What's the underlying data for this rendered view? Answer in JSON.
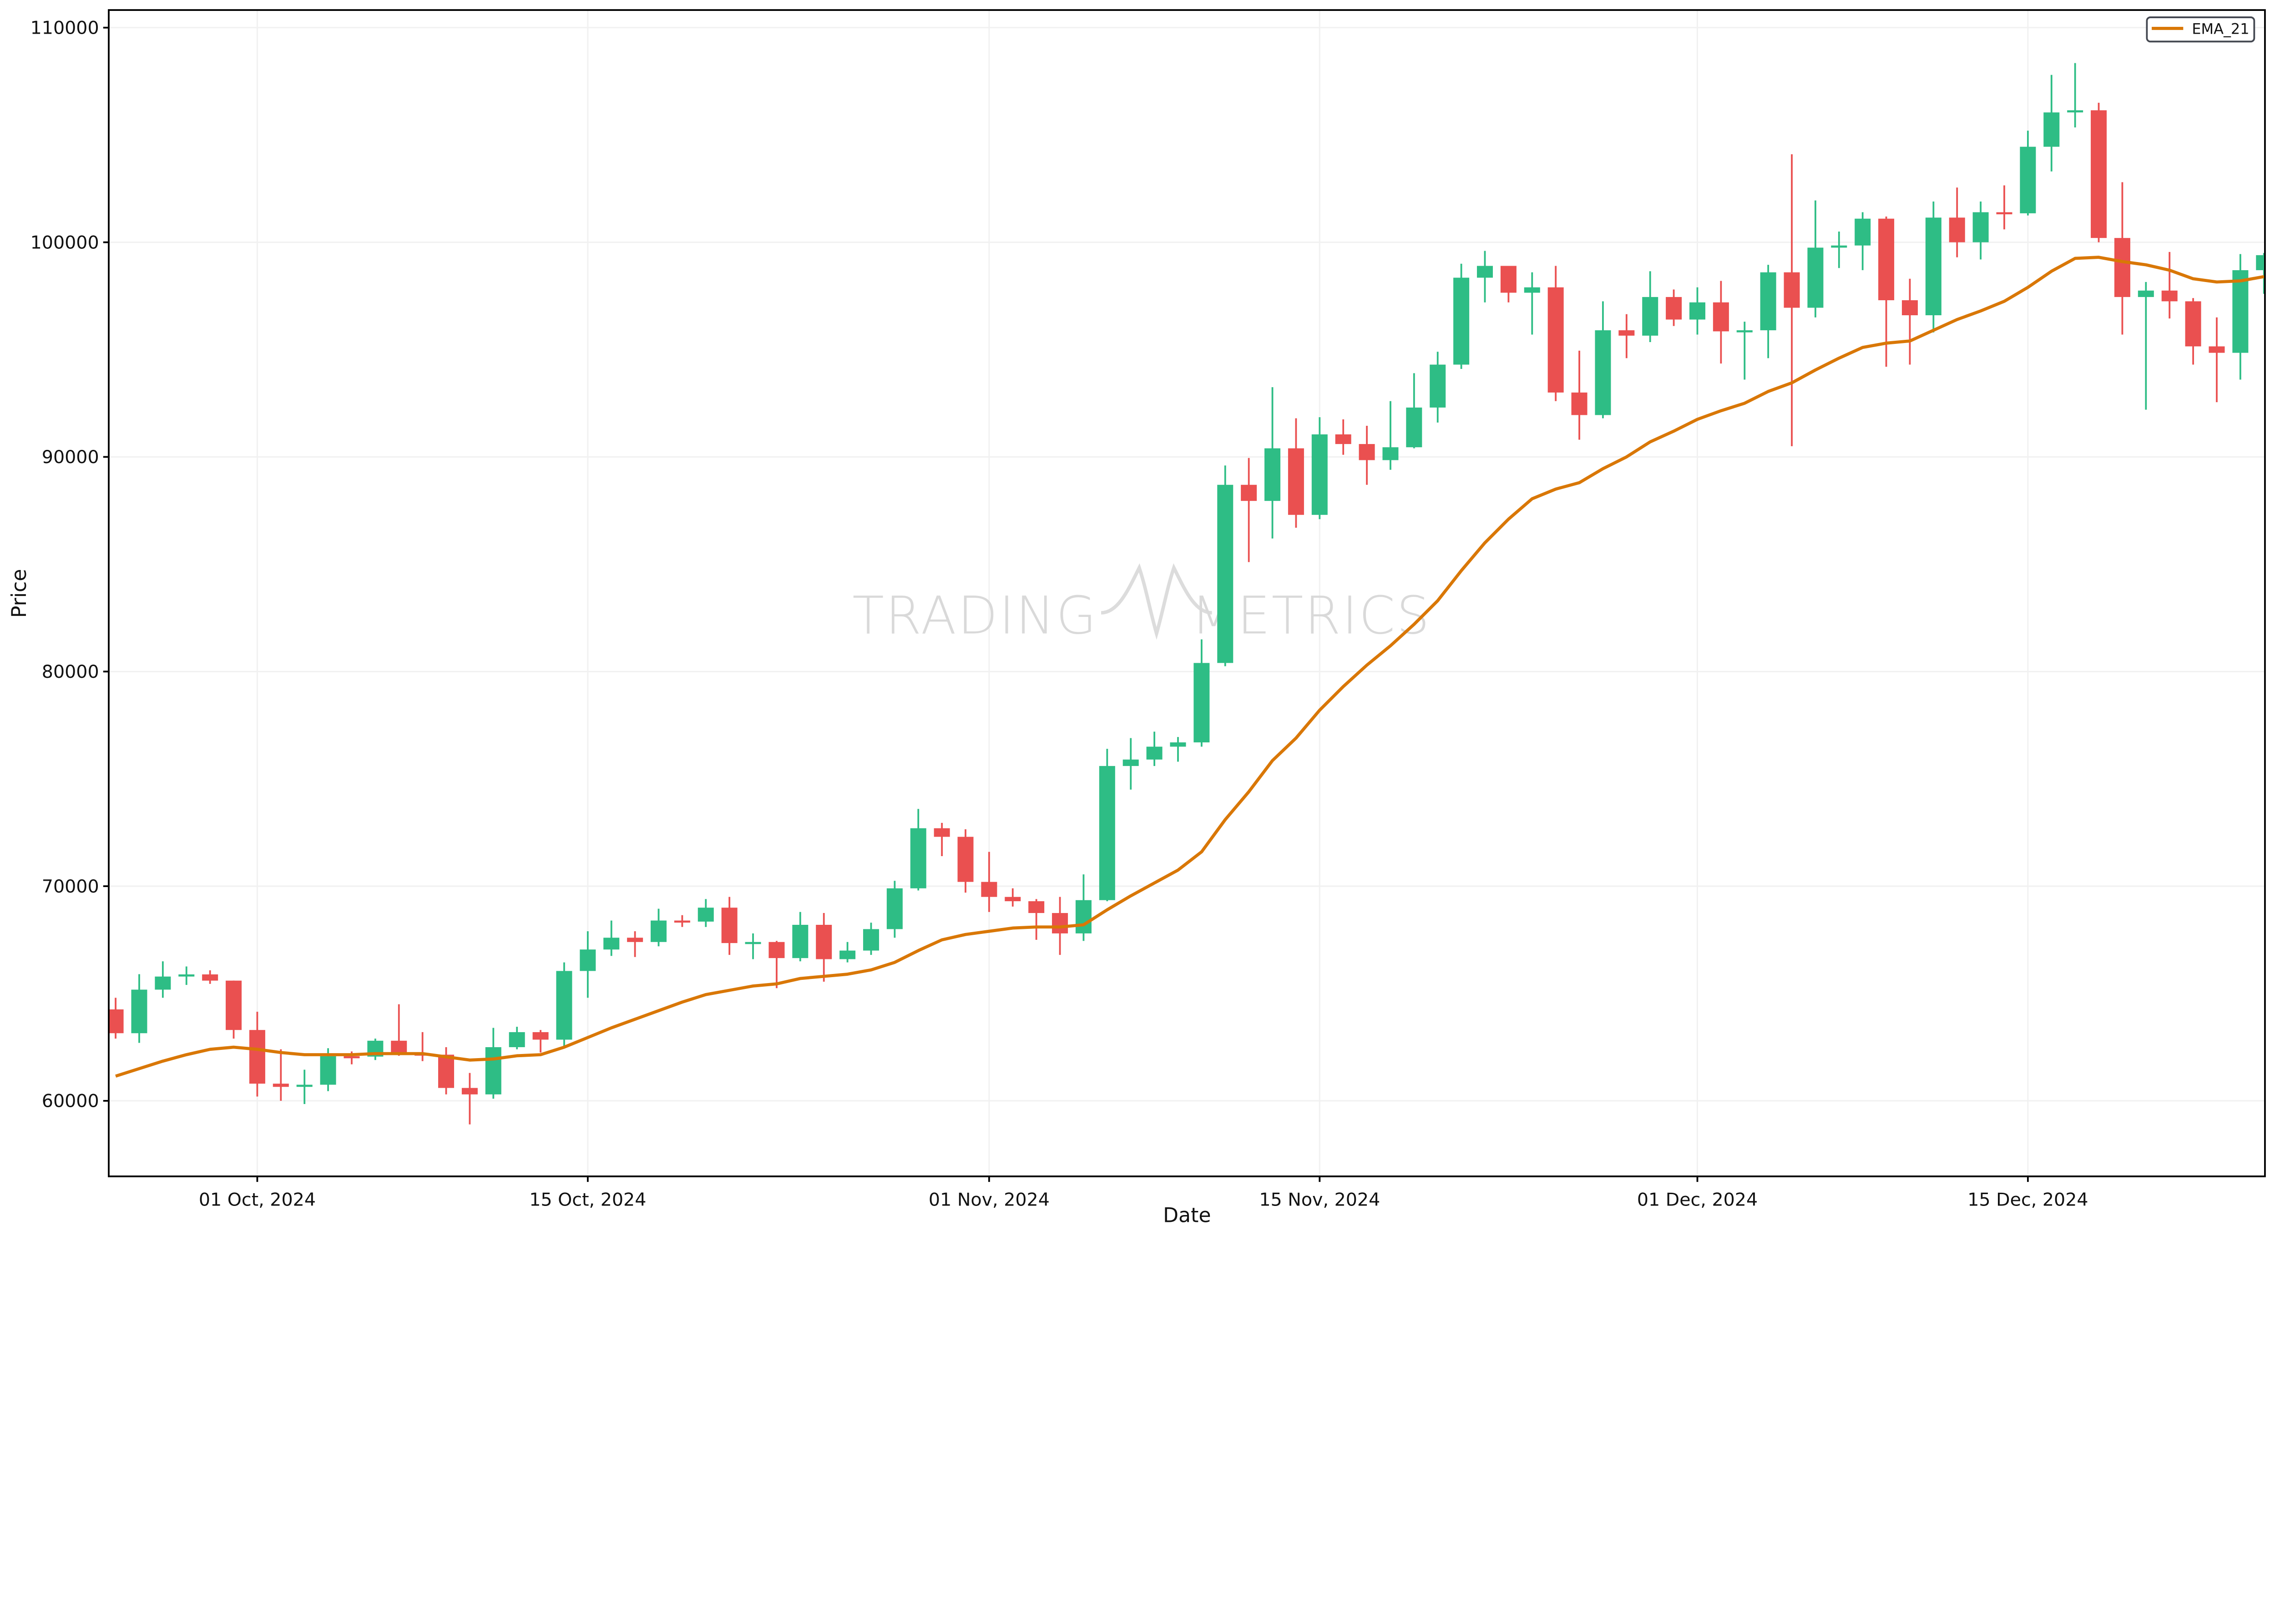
{
  "chart_data": {
    "type": "candlestick",
    "xlabel": "Date",
    "ylabel": "Price",
    "ylim": [
      56480,
      110820
    ],
    "xlim": [
      "2024-09-24T17:00",
      "2024-12-25T01:00"
    ],
    "yticks": [
      60000,
      70000,
      80000,
      90000,
      100000,
      110000
    ],
    "ytick_labels": [
      "60000",
      "70000",
      "80000",
      "90000",
      "100000",
      "110000"
    ],
    "xticks": [
      "2024-10-01",
      "2024-10-15",
      "2024-11-01",
      "2024-11-15",
      "2024-12-01",
      "2024-12-15"
    ],
    "xtick_labels": [
      "01 Oct, 2024",
      "15 Oct, 2024",
      "01 Nov, 2024",
      "15 Nov, 2024",
      "01 Dec, 2024",
      "15 Dec, 2024"
    ],
    "grid": true,
    "legend": {
      "placement": "top-right",
      "entries": [
        "EMA_21"
      ]
    },
    "watermark": "TRADING METRICS",
    "colors": {
      "up": "#2ebd85",
      "down": "#ea5050",
      "ema": "#d97706"
    },
    "candles_columns": [
      "date",
      "open",
      "high",
      "low",
      "close"
    ],
    "candles": [
      [
        "2024-09-25",
        64260,
        64800,
        62900,
        63150
      ],
      [
        "2024-09-26",
        63150,
        65900,
        62700,
        65180
      ],
      [
        "2024-09-27",
        65180,
        66500,
        64800,
        65790
      ],
      [
        "2024-09-28",
        65790,
        66260,
        65400,
        65890
      ],
      [
        "2024-09-29",
        65890,
        66080,
        65450,
        65600
      ],
      [
        "2024-09-30",
        65600,
        65600,
        62900,
        63300
      ],
      [
        "2024-10-01",
        63300,
        64150,
        60200,
        60800
      ],
      [
        "2024-10-02",
        60800,
        62400,
        60000,
        60650
      ],
      [
        "2024-10-03",
        60650,
        61450,
        59850,
        60750
      ],
      [
        "2024-10-04",
        60750,
        62450,
        60450,
        62080
      ],
      [
        "2024-10-05",
        62080,
        62300,
        61700,
        62060
      ],
      [
        "2024-10-06",
        62060,
        62900,
        61900,
        62800
      ],
      [
        "2024-10-07",
        62800,
        64500,
        62100,
        62200
      ],
      [
        "2024-10-08",
        62200,
        63200,
        61850,
        62150
      ],
      [
        "2024-10-09",
        62150,
        62500,
        60300,
        60600
      ],
      [
        "2024-10-10",
        60600,
        61300,
        58900,
        60300
      ],
      [
        "2024-10-11",
        60300,
        63400,
        60100,
        62500
      ],
      [
        "2024-10-12",
        62500,
        63450,
        62400,
        63200
      ],
      [
        "2024-10-13",
        63200,
        63300,
        62250,
        62850
      ],
      [
        "2024-10-14",
        62850,
        66450,
        62450,
        66050
      ],
      [
        "2024-10-15",
        66050,
        67900,
        64800,
        67050
      ],
      [
        "2024-10-16",
        67050,
        68400,
        66750,
        67600
      ],
      [
        "2024-10-17",
        67600,
        67900,
        66700,
        67400
      ],
      [
        "2024-10-18",
        67400,
        68950,
        67200,
        68400
      ],
      [
        "2024-10-19",
        68400,
        68650,
        68100,
        68350
      ],
      [
        "2024-10-20",
        68350,
        69400,
        68100,
        69000
      ],
      [
        "2024-10-21",
        69000,
        69500,
        66800,
        67350
      ],
      [
        "2024-10-22",
        67350,
        67800,
        66600,
        67400
      ],
      [
        "2024-10-23",
        67400,
        67450,
        65250,
        66650
      ],
      [
        "2024-10-24",
        66650,
        68800,
        66500,
        68200
      ],
      [
        "2024-10-25",
        68200,
        68750,
        65550,
        66600
      ],
      [
        "2024-10-26",
        66600,
        67400,
        66450,
        67000
      ],
      [
        "2024-10-27",
        67000,
        68300,
        66800,
        68000
      ],
      [
        "2024-10-28",
        68000,
        70250,
        67600,
        69900
      ],
      [
        "2024-10-29",
        69900,
        73600,
        69800,
        72700
      ],
      [
        "2024-10-30",
        72700,
        72950,
        71400,
        72300
      ],
      [
        "2024-10-31",
        72300,
        72650,
        69700,
        70200
      ],
      [
        "2024-11-01",
        70200,
        71600,
        68800,
        69500
      ],
      [
        "2024-11-02",
        69500,
        69900,
        69050,
        69300
      ],
      [
        "2024-11-03",
        69300,
        69400,
        67500,
        68750
      ],
      [
        "2024-11-04",
        68750,
        69500,
        66800,
        67800
      ],
      [
        "2024-11-05",
        67800,
        70550,
        67450,
        69350
      ],
      [
        "2024-11-06",
        69350,
        76400,
        69300,
        75600
      ],
      [
        "2024-11-07",
        75600,
        76900,
        74500,
        75900
      ],
      [
        "2024-11-08",
        75900,
        77200,
        75600,
        76500
      ],
      [
        "2024-11-09",
        76500,
        76950,
        75800,
        76700
      ],
      [
        "2024-11-10",
        76700,
        81500,
        76500,
        80400
      ],
      [
        "2024-11-11",
        80400,
        89600,
        80250,
        88700
      ],
      [
        "2024-11-12",
        88700,
        89950,
        85100,
        87950
      ],
      [
        "2024-11-13",
        87950,
        93250,
        86200,
        90400
      ],
      [
        "2024-11-14",
        90400,
        91800,
        86700,
        87300
      ],
      [
        "2024-11-15",
        87300,
        91850,
        87100,
        91050
      ],
      [
        "2024-11-16",
        91050,
        91750,
        90100,
        90600
      ],
      [
        "2024-11-17",
        90600,
        91450,
        88700,
        89850
      ],
      [
        "2024-11-18",
        89850,
        92600,
        89400,
        90450
      ],
      [
        "2024-11-19",
        90450,
        93900,
        90400,
        92300
      ],
      [
        "2024-11-20",
        92300,
        94900,
        91600,
        94300
      ],
      [
        "2024-11-21",
        94300,
        99000,
        94100,
        98350
      ],
      [
        "2024-11-22",
        98350,
        99600,
        97200,
        98900
      ],
      [
        "2024-11-23",
        98900,
        98900,
        97200,
        97650
      ],
      [
        "2024-11-24",
        97650,
        98600,
        95700,
        97900
      ],
      [
        "2024-11-25",
        97900,
        98900,
        92600,
        93000
      ],
      [
        "2024-11-26",
        93000,
        94950,
        90800,
        91950
      ],
      [
        "2024-11-27",
        91950,
        97250,
        91800,
        95900
      ],
      [
        "2024-11-28",
        95900,
        96650,
        94600,
        95650
      ],
      [
        "2024-11-29",
        95650,
        98650,
        95350,
        97450
      ],
      [
        "2024-11-30",
        97450,
        97800,
        96100,
        96400
      ],
      [
        "2024-12-01",
        96400,
        97900,
        95700,
        97200
      ],
      [
        "2024-12-02",
        97200,
        98200,
        94350,
        95850
      ],
      [
        "2024-12-03",
        95850,
        96300,
        93600,
        95900
      ],
      [
        "2024-12-04",
        95900,
        98950,
        94600,
        98600
      ],
      [
        "2024-12-05",
        98600,
        104100,
        90500,
        96950
      ],
      [
        "2024-12-06",
        96950,
        101950,
        96500,
        99750
      ],
      [
        "2024-12-07",
        99750,
        100500,
        98800,
        99850
      ],
      [
        "2024-12-08",
        99850,
        101400,
        98700,
        101100
      ],
      [
        "2024-12-09",
        101100,
        101200,
        94200,
        97300
      ],
      [
        "2024-12-10",
        97300,
        98300,
        94300,
        96600
      ],
      [
        "2024-12-11",
        96600,
        101900,
        95800,
        101150
      ],
      [
        "2024-12-12",
        101150,
        102550,
        99300,
        100000
      ],
      [
        "2024-12-13",
        100000,
        101900,
        99200,
        101400
      ],
      [
        "2024-12-14",
        101400,
        102650,
        100600,
        101350
      ],
      [
        "2024-12-15",
        101350,
        105200,
        101250,
        104450
      ],
      [
        "2024-12-16",
        104450,
        107800,
        103300,
        106050
      ],
      [
        "2024-12-17",
        106050,
        108350,
        105350,
        106150
      ],
      [
        "2024-12-18",
        106150,
        106500,
        100000,
        100200
      ],
      [
        "2024-12-19",
        100200,
        102800,
        95700,
        97450
      ],
      [
        "2024-12-20",
        97450,
        98150,
        92200,
        97750
      ],
      [
        "2024-12-21",
        97750,
        99550,
        96450,
        97250
      ],
      [
        "2024-12-22",
        97250,
        97400,
        94300,
        95150
      ],
      [
        "2024-12-23",
        95150,
        96500,
        92550,
        94850
      ],
      [
        "2024-12-24",
        94850,
        99450,
        93600,
        98700
      ],
      [
        "2024-12-25",
        98700,
        99500,
        97600,
        99400
      ]
    ],
    "series": [
      {
        "name": "EMA_21",
        "type": "line",
        "values": [
          61150,
          61500,
          61850,
          62150,
          62400,
          62500,
          62400,
          62250,
          62150,
          62150,
          62150,
          62200,
          62200,
          62200,
          62050,
          61900,
          61950,
          62100,
          62150,
          62500,
          62950,
          63400,
          63800,
          64200,
          64600,
          64950,
          65150,
          65350,
          65450,
          65700,
          65800,
          65900,
          66100,
          66450,
          67000,
          67500,
          67750,
          67900,
          68050,
          68100,
          68100,
          68200,
          68900,
          69550,
          70150,
          70750,
          71600,
          73100,
          74400,
          75850,
          76900,
          78200,
          79300,
          80300,
          81200,
          82200,
          83300,
          84700,
          86000,
          87100,
          88050,
          88500,
          88800,
          89450,
          90000,
          90700,
          91200,
          91750,
          92150,
          92500,
          93050,
          93450,
          94050,
          94600,
          95100,
          95300,
          95400,
          95900,
          96400,
          96800,
          97250,
          97900,
          98650,
          99250,
          99300,
          99100,
          98950,
          98700,
          98300,
          98150,
          98200,
          98400
        ]
      }
    ]
  }
}
